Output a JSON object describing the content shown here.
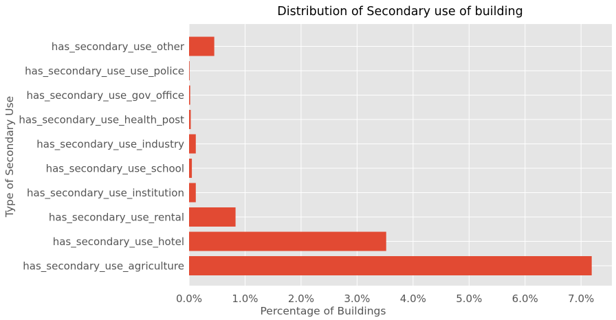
{
  "chart_data": {
    "type": "bar",
    "orientation": "horizontal",
    "title": "Distribution of Secondary use of building",
    "xlabel": "Percentage of Buildings",
    "ylabel": "Type of Secondary Use",
    "categories": [
      "has_secondary_use_agriculture",
      "has_secondary_use_hotel",
      "has_secondary_use_rental",
      "has_secondary_use_institution",
      "has_secondary_use_school",
      "has_secondary_use_industry",
      "has_secondary_use_health_post",
      "has_secondary_use_gov_office",
      "has_secondary_use_use_police",
      "has_secondary_use_other"
    ],
    "values": [
      7.19,
      3.52,
      0.83,
      0.12,
      0.05,
      0.12,
      0.03,
      0.02,
      0.01,
      0.45
    ],
    "xlim": [
      0,
      7.55
    ],
    "xticks": [
      0,
      1,
      2,
      3,
      4,
      5,
      6,
      7
    ],
    "xtick_labels": [
      "0.0%",
      "1.0%",
      "2.0%",
      "3.0%",
      "4.0%",
      "5.0%",
      "6.0%",
      "7.0%"
    ],
    "grid": true,
    "colors": {
      "bar": "#E24A33",
      "background": "#E5E5E5",
      "grid": "#FFFFFF"
    }
  }
}
